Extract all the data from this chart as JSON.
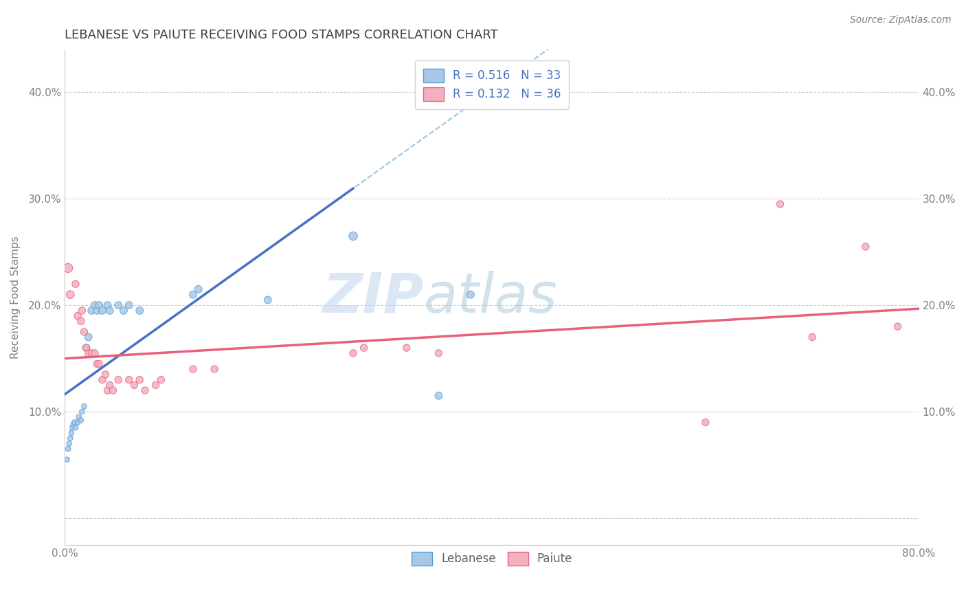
{
  "title": "LEBANESE VS PAIUTE RECEIVING FOOD STAMPS CORRELATION CHART",
  "source": "Source: ZipAtlas.com",
  "ylabel": "Receiving Food Stamps",
  "xlim": [
    0.0,
    0.8
  ],
  "ylim": [
    -0.025,
    0.44
  ],
  "x_tick_positions": [
    0.0,
    0.1,
    0.2,
    0.3,
    0.4,
    0.5,
    0.6,
    0.7,
    0.8
  ],
  "x_tick_labels": [
    "0.0%",
    "",
    "",
    "",
    "",
    "",
    "",
    "",
    "80.0%"
  ],
  "y_tick_positions": [
    0.0,
    0.1,
    0.2,
    0.3,
    0.4
  ],
  "y_tick_labels_left": [
    "",
    "10.0%",
    "20.0%",
    "30.0%",
    "40.0%"
  ],
  "y_tick_labels_right": [
    "",
    "10.0%",
    "20.0%",
    "30.0%",
    "40.0%"
  ],
  "legend_R_leb": "R = 0.516",
  "legend_N_leb": "N = 33",
  "legend_R_pai": "R = 0.132",
  "legend_N_pai": "N = 36",
  "watermark_zip": "ZIP",
  "watermark_atlas": "atlas",
  "scatter_lebanese": [
    [
      0.002,
      0.055
    ],
    [
      0.003,
      0.065
    ],
    [
      0.004,
      0.07
    ],
    [
      0.005,
      0.075
    ],
    [
      0.006,
      0.08
    ],
    [
      0.007,
      0.085
    ],
    [
      0.008,
      0.088
    ],
    [
      0.009,
      0.09
    ],
    [
      0.01,
      0.085
    ],
    [
      0.012,
      0.09
    ],
    [
      0.013,
      0.095
    ],
    [
      0.015,
      0.092
    ],
    [
      0.016,
      0.1
    ],
    [
      0.018,
      0.105
    ],
    [
      0.02,
      0.16
    ],
    [
      0.022,
      0.17
    ],
    [
      0.025,
      0.195
    ],
    [
      0.028,
      0.2
    ],
    [
      0.03,
      0.195
    ],
    [
      0.032,
      0.2
    ],
    [
      0.035,
      0.195
    ],
    [
      0.04,
      0.2
    ],
    [
      0.042,
      0.195
    ],
    [
      0.05,
      0.2
    ],
    [
      0.055,
      0.195
    ],
    [
      0.06,
      0.2
    ],
    [
      0.07,
      0.195
    ],
    [
      0.12,
      0.21
    ],
    [
      0.125,
      0.215
    ],
    [
      0.19,
      0.205
    ],
    [
      0.27,
      0.265
    ],
    [
      0.35,
      0.115
    ],
    [
      0.38,
      0.21
    ]
  ],
  "scatter_paiute": [
    [
      0.003,
      0.235
    ],
    [
      0.005,
      0.21
    ],
    [
      0.01,
      0.22
    ],
    [
      0.012,
      0.19
    ],
    [
      0.015,
      0.185
    ],
    [
      0.016,
      0.195
    ],
    [
      0.018,
      0.175
    ],
    [
      0.02,
      0.16
    ],
    [
      0.022,
      0.155
    ],
    [
      0.025,
      0.155
    ],
    [
      0.028,
      0.155
    ],
    [
      0.03,
      0.145
    ],
    [
      0.032,
      0.145
    ],
    [
      0.035,
      0.13
    ],
    [
      0.038,
      0.135
    ],
    [
      0.04,
      0.12
    ],
    [
      0.042,
      0.125
    ],
    [
      0.045,
      0.12
    ],
    [
      0.05,
      0.13
    ],
    [
      0.06,
      0.13
    ],
    [
      0.065,
      0.125
    ],
    [
      0.07,
      0.13
    ],
    [
      0.075,
      0.12
    ],
    [
      0.085,
      0.125
    ],
    [
      0.09,
      0.13
    ],
    [
      0.12,
      0.14
    ],
    [
      0.14,
      0.14
    ],
    [
      0.27,
      0.155
    ],
    [
      0.28,
      0.16
    ],
    [
      0.32,
      0.16
    ],
    [
      0.35,
      0.155
    ],
    [
      0.6,
      0.09
    ],
    [
      0.67,
      0.295
    ],
    [
      0.7,
      0.17
    ],
    [
      0.75,
      0.255
    ],
    [
      0.78,
      0.18
    ]
  ],
  "scatter_lebanese_sizes": [
    30,
    30,
    30,
    30,
    30,
    30,
    30,
    30,
    30,
    30,
    30,
    30,
    30,
    30,
    60,
    60,
    60,
    60,
    60,
    60,
    60,
    60,
    60,
    60,
    60,
    60,
    60,
    60,
    60,
    60,
    80,
    60,
    60
  ],
  "color_lebanese_fill": "#a8c8e8",
  "color_lebanese_edge": "#5b9bd5",
  "color_paiute_fill": "#f4b0c0",
  "color_paiute_edge": "#e8607a",
  "color_leb_line": "#4472c4",
  "color_pai_line": "#e8607a",
  "color_dashed": "#6baed6",
  "grid_color": "#d0d0d0",
  "bg_color": "#ffffff",
  "title_color": "#404040",
  "legend_text_color": "#4472c4",
  "axis_tick_color": "#808080"
}
